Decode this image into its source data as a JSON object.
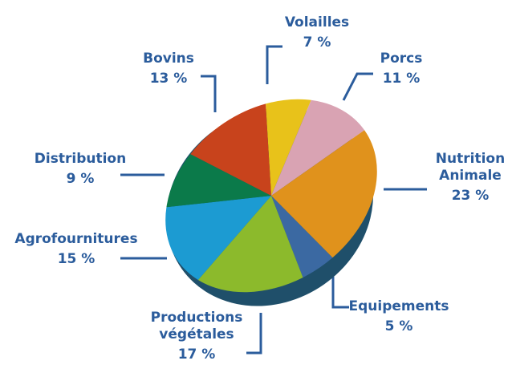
{
  "chart_data": {
    "type": "pie",
    "categories": [
      "Volailles",
      "Porcs",
      "Nutrition Animale",
      "Equipements",
      "Productions végétales",
      "Agrofournitures",
      "Distribution",
      "Bovins"
    ],
    "values": [
      7,
      11,
      23,
      5,
      17,
      15,
      9,
      13
    ],
    "value_labels": [
      "7 %",
      "11 %",
      "23 %",
      "5 %",
      "17 %",
      "15 %",
      "9 %",
      "13 %"
    ],
    "colors": [
      "#e8c21a",
      "#d9a3b3",
      "#e0921c",
      "#3b69a2",
      "#8cba2c",
      "#1c9bd2",
      "#0b7a4a",
      "#c8431c"
    ]
  }
}
